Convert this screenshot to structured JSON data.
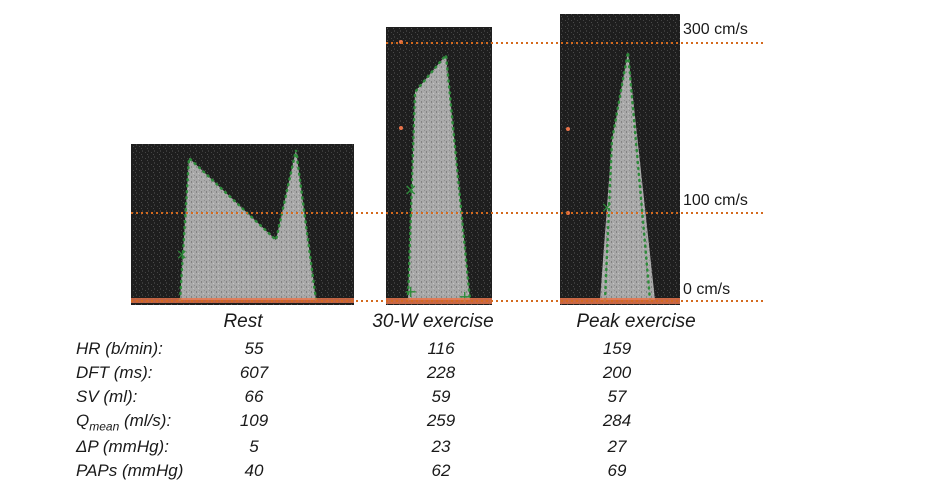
{
  "scale": {
    "labels": [
      "300 cm/s",
      "100 cm/s",
      "0 cm/s"
    ],
    "line_color": "#d46a1e"
  },
  "panels": [
    {
      "label": "Rest"
    },
    {
      "label": "30-W exercise"
    },
    {
      "label": "Peak exercise"
    }
  ],
  "table": {
    "rows": [
      {
        "label": "HR (b/min):",
        "values": [
          "55",
          "116",
          "159"
        ]
      },
      {
        "label": "DFT (ms):",
        "values": [
          "607",
          "228",
          "200"
        ]
      },
      {
        "label": "SV (ml):",
        "values": [
          "66",
          "59",
          "57"
        ]
      },
      {
        "label_main": "Q",
        "label_sub": "mean",
        "label_rest": " (ml/s):",
        "values": [
          "109",
          "259",
          "284"
        ]
      },
      {
        "label": "ΔP (mmHg):",
        "values": [
          "5",
          "23",
          "27"
        ]
      },
      {
        "label": "PAPs (mmHg)",
        "values": [
          "40",
          "62",
          "69"
        ]
      }
    ]
  },
  "colors": {
    "trace": "#2e8b3a",
    "baseline": "#e8734a",
    "background": "#1e1e1e"
  }
}
